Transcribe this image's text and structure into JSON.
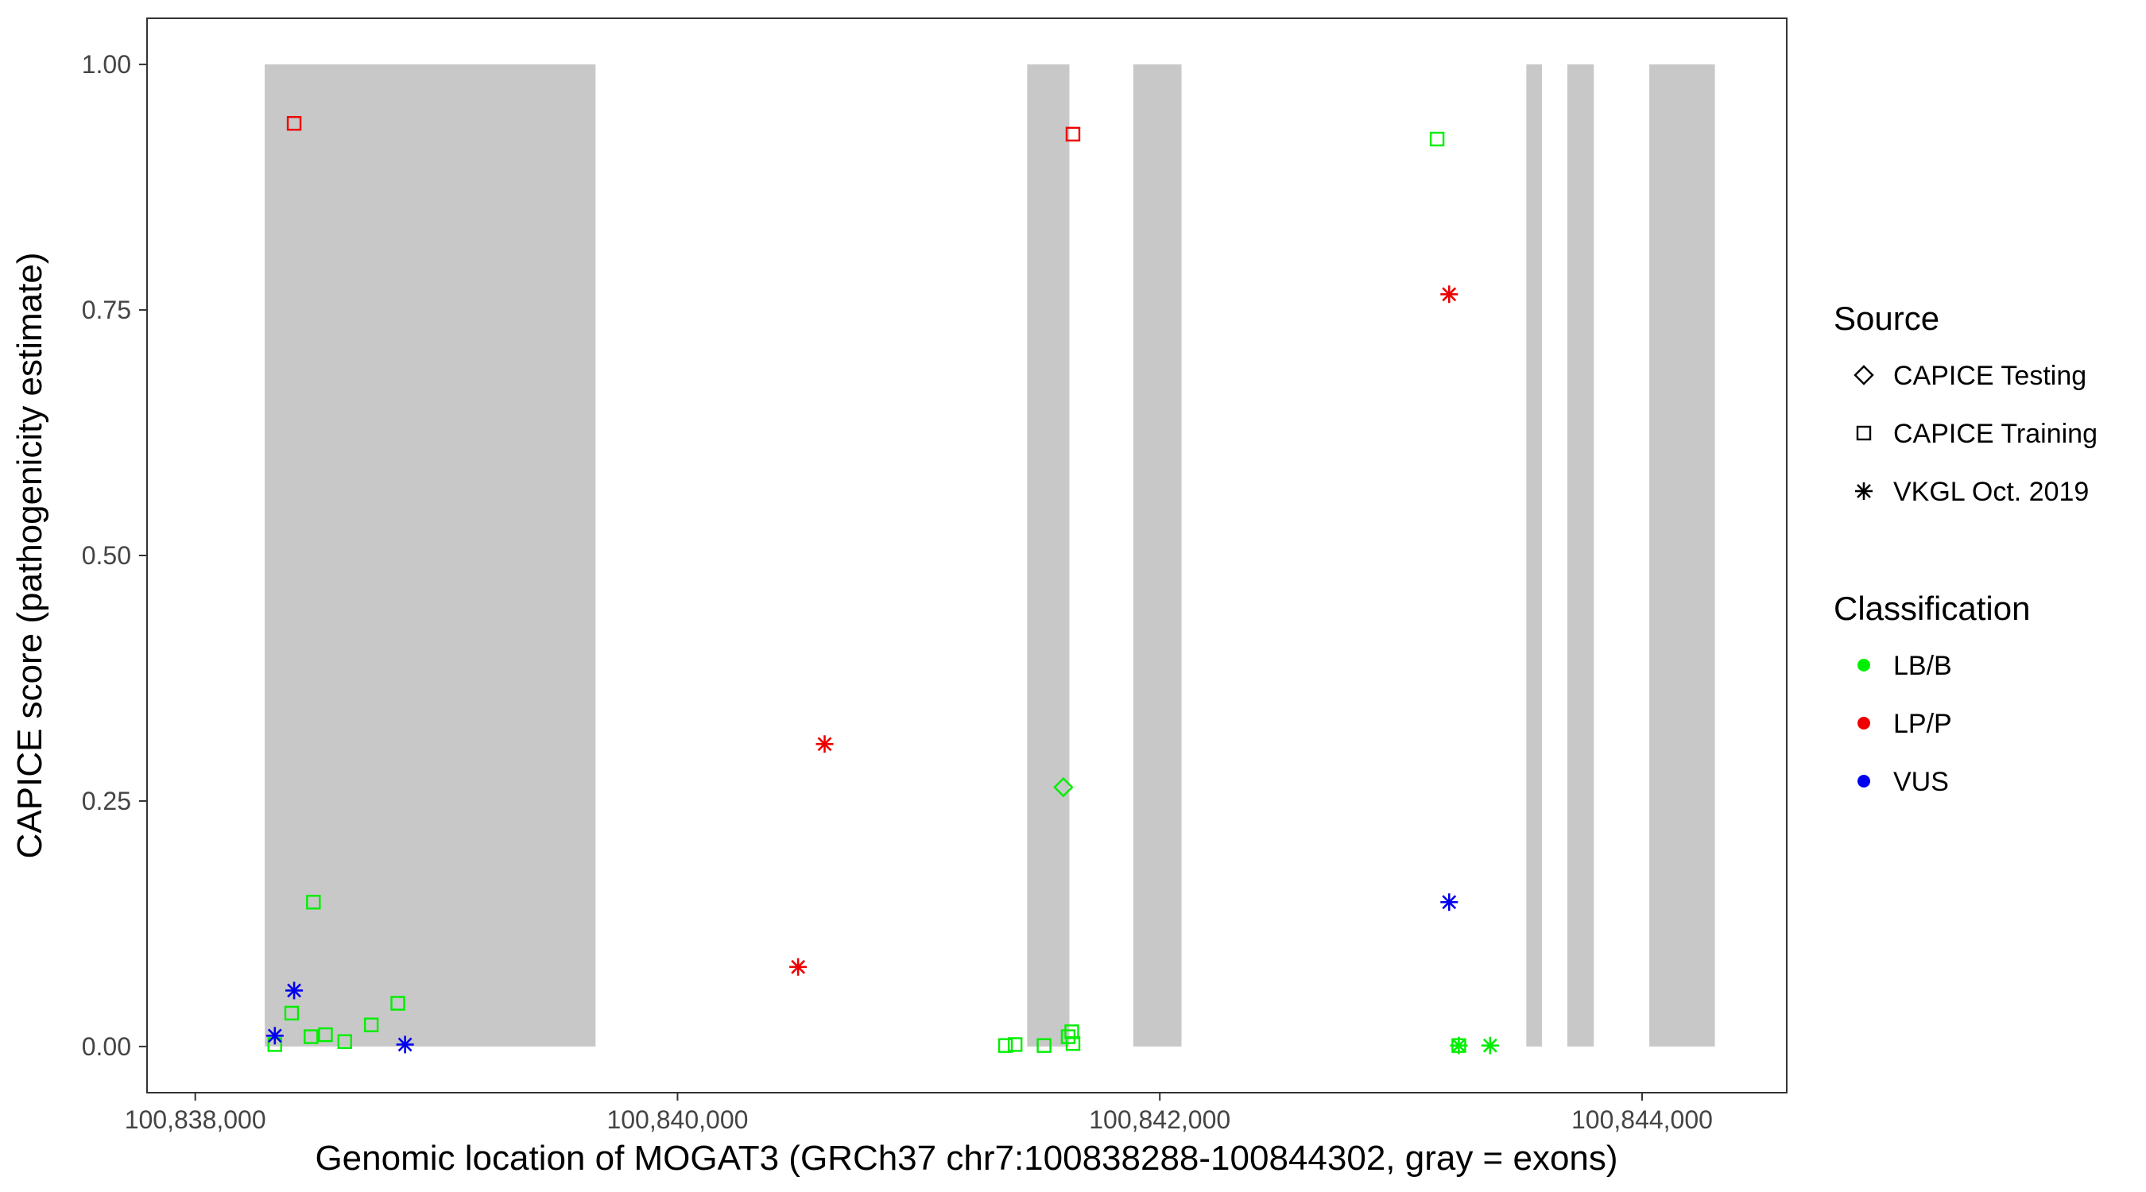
{
  "chart_data": {
    "type": "scatter",
    "title": "",
    "xlabel": "Genomic location of MOGAT3 (GRCh37 chr7:100838288-100844302, gray = exons)",
    "ylabel": "CAPICE score (pathogenicity estimate)",
    "xlim": [
      100837800,
      100844600
    ],
    "ylim": [
      -0.047,
      1.047
    ],
    "x_ticks": [
      {
        "value": 100838000,
        "label": "100,838,000"
      },
      {
        "value": 100840000,
        "label": "100,840,000"
      },
      {
        "value": 100842000,
        "label": "100,842,000"
      },
      {
        "value": 100844000,
        "label": "100,844,000"
      }
    ],
    "y_ticks": [
      {
        "value": 0.0,
        "label": "0.00"
      },
      {
        "value": 0.25,
        "label": "0.25"
      },
      {
        "value": 0.5,
        "label": "0.50"
      },
      {
        "value": 0.75,
        "label": "0.75"
      },
      {
        "value": 1.0,
        "label": "1.00"
      }
    ],
    "grid": false,
    "exons": [
      [
        100838288,
        100839660
      ],
      [
        100841450,
        100841625
      ],
      [
        100841890,
        100842090
      ],
      [
        100843520,
        100843585
      ],
      [
        100843690,
        100843800
      ],
      [
        100844030,
        100844302
      ]
    ],
    "exon_color": "#c8c8c8",
    "classification_colors": {
      "LB/B": "#00ee00",
      "LP/P": "#ee0000",
      "VUS": "#0000ee"
    },
    "legend": {
      "position": "right",
      "source_title": "Source",
      "source_items": [
        {
          "shape": "diamond",
          "label": "CAPICE Testing"
        },
        {
          "shape": "square",
          "label": "CAPICE Training"
        },
        {
          "shape": "asterisk",
          "label": "VKGL Oct. 2019"
        }
      ],
      "classification_title": "Classification",
      "classification_items": [
        {
          "key": "LB/B",
          "label": "LB/B"
        },
        {
          "key": "LP/P",
          "label": "LP/P"
        },
        {
          "key": "VUS",
          "label": "VUS"
        }
      ]
    },
    "points": [
      {
        "x": 100838410,
        "y": 0.94,
        "source": "CAPICE Training",
        "class": "LP/P"
      },
      {
        "x": 100838490,
        "y": 0.147,
        "source": "CAPICE Training",
        "class": "LB/B"
      },
      {
        "x": 100838400,
        "y": 0.034,
        "source": "CAPICE Training",
        "class": "LB/B"
      },
      {
        "x": 100838330,
        "y": 0.002,
        "source": "CAPICE Training",
        "class": "LB/B"
      },
      {
        "x": 100838480,
        "y": 0.01,
        "source": "CAPICE Training",
        "class": "LB/B"
      },
      {
        "x": 100838540,
        "y": 0.012,
        "source": "CAPICE Training",
        "class": "LB/B"
      },
      {
        "x": 100838620,
        "y": 0.005,
        "source": "CAPICE Training",
        "class": "LB/B"
      },
      {
        "x": 100838730,
        "y": 0.022,
        "source": "CAPICE Training",
        "class": "LB/B"
      },
      {
        "x": 100838840,
        "y": 0.044,
        "source": "CAPICE Training",
        "class": "LB/B"
      },
      {
        "x": 100838410,
        "y": 0.057,
        "source": "VKGL Oct. 2019",
        "class": "VUS"
      },
      {
        "x": 100838330,
        "y": 0.011,
        "source": "VKGL Oct. 2019",
        "class": "VUS"
      },
      {
        "x": 100838870,
        "y": 0.002,
        "source": "VKGL Oct. 2019",
        "class": "VUS"
      },
      {
        "x": 100840610,
        "y": 0.308,
        "source": "VKGL Oct. 2019",
        "class": "LP/P"
      },
      {
        "x": 100840500,
        "y": 0.081,
        "source": "VKGL Oct. 2019",
        "class": "LP/P"
      },
      {
        "x": 100841640,
        "y": 0.929,
        "source": "CAPICE Training",
        "class": "LP/P"
      },
      {
        "x": 100841600,
        "y": 0.264,
        "source": "CAPICE Testing",
        "class": "LB/B"
      },
      {
        "x": 100841360,
        "y": 0.001,
        "source": "CAPICE Training",
        "class": "LB/B"
      },
      {
        "x": 100841400,
        "y": 0.002,
        "source": "CAPICE Training",
        "class": "LB/B"
      },
      {
        "x": 100841520,
        "y": 0.001,
        "source": "CAPICE Training",
        "class": "LB/B"
      },
      {
        "x": 100841620,
        "y": 0.01,
        "source": "CAPICE Training",
        "class": "LB/B"
      },
      {
        "x": 100841635,
        "y": 0.015,
        "source": "CAPICE Training",
        "class": "LB/B"
      },
      {
        "x": 100841640,
        "y": 0.003,
        "source": "CAPICE Training",
        "class": "LB/B"
      },
      {
        "x": 100843150,
        "y": 0.924,
        "source": "CAPICE Training",
        "class": "LB/B"
      },
      {
        "x": 100843200,
        "y": 0.766,
        "source": "VKGL Oct. 2019",
        "class": "LP/P"
      },
      {
        "x": 100843200,
        "y": 0.147,
        "source": "VKGL Oct. 2019",
        "class": "VUS"
      },
      {
        "x": 100843240,
        "y": 0.001,
        "source": "CAPICE Training",
        "class": "LB/B"
      },
      {
        "x": 100843240,
        "y": 0.001,
        "source": "VKGL Oct. 2019",
        "class": "LB/B"
      },
      {
        "x": 100843370,
        "y": 0.001,
        "source": "VKGL Oct. 2019",
        "class": "LB/B"
      }
    ]
  }
}
